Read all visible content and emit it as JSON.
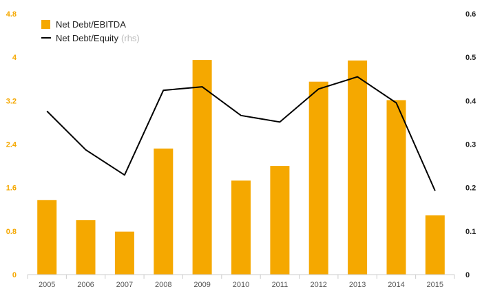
{
  "chart_data": {
    "type": "bar",
    "categories": [
      "2005",
      "2006",
      "2007",
      "2008",
      "2009",
      "2010",
      "2011",
      "2012",
      "2013",
      "2014",
      "2015"
    ],
    "series": [
      {
        "name": "Net Debt/EBITDA",
        "type": "bar",
        "axis": "left",
        "color": "#f5a800",
        "values": [
          1.37,
          1.0,
          0.79,
          2.32,
          3.95,
          1.73,
          2.0,
          3.55,
          3.94,
          3.21,
          1.09
        ]
      },
      {
        "name": "Net Debt/Equity",
        "name_suffix": "(rhs)",
        "type": "line",
        "axis": "right",
        "color": "#000000",
        "values": [
          0.376,
          0.287,
          0.229,
          0.424,
          0.432,
          0.366,
          0.351,
          0.427,
          0.455,
          0.395,
          0.193
        ]
      }
    ],
    "left_axis": {
      "ticks": [
        "0",
        "0.8",
        "1.6",
        "2.4",
        "3.2",
        "4",
        "4.8"
      ],
      "tick_values": [
        0,
        0.8,
        1.6,
        2.4,
        3.2,
        4.0,
        4.8
      ],
      "ylim": [
        0,
        4.8
      ],
      "color": "#f5a800"
    },
    "right_axis": {
      "ticks": [
        "0",
        "0.1",
        "0.2",
        "0.3",
        "0.4",
        "0.5",
        "0.6"
      ],
      "tick_values": [
        0,
        0.1,
        0.2,
        0.3,
        0.4,
        0.5,
        0.6
      ],
      "ylim": [
        0,
        0.6
      ],
      "color": "#222222"
    },
    "grid": false,
    "legend_position": "top-left"
  }
}
